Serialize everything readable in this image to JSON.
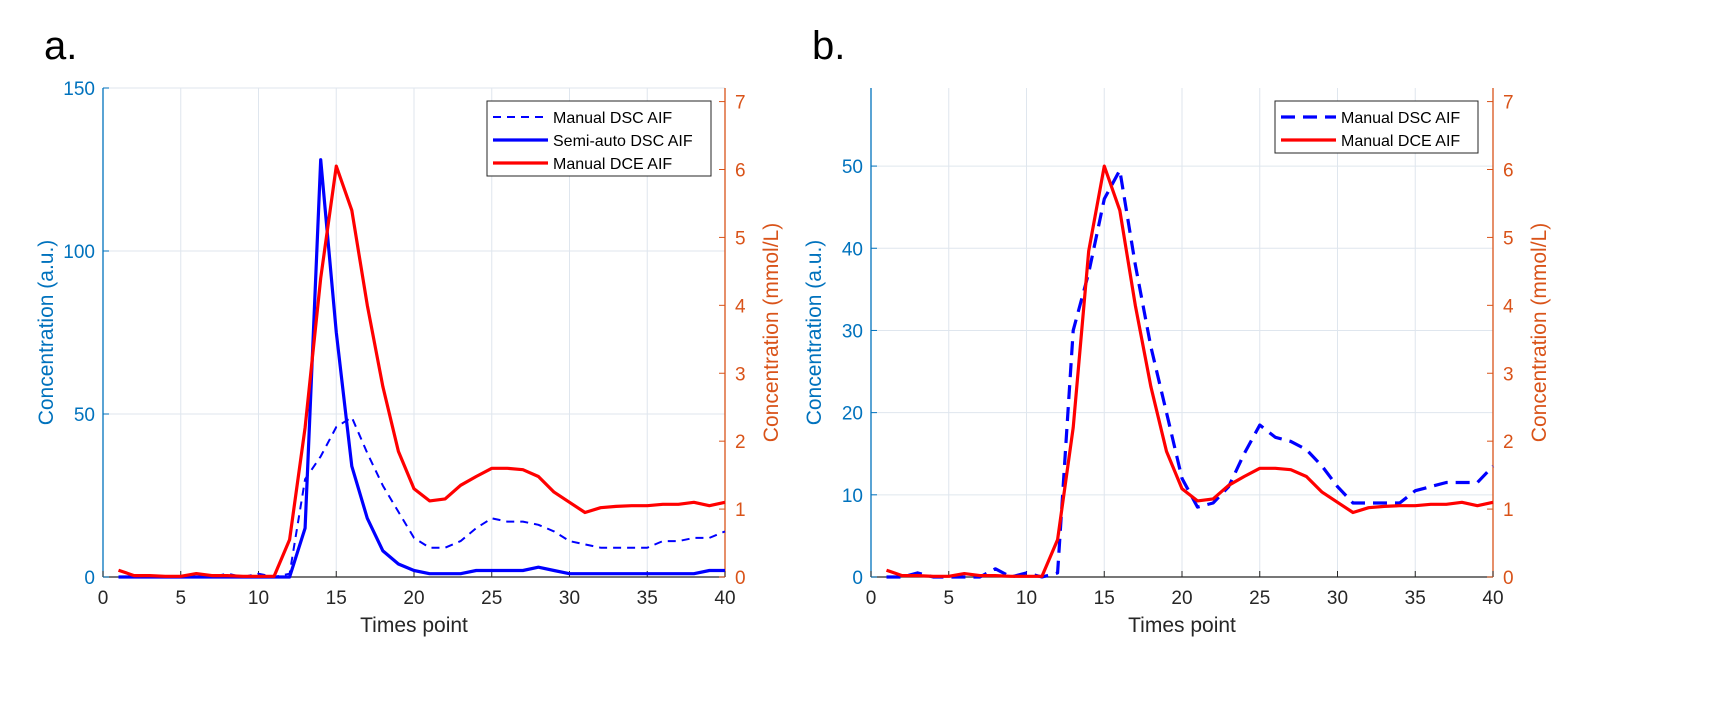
{
  "panels": [
    {
      "label": "a."
    },
    {
      "label": "b."
    }
  ],
  "colors": {
    "left_axis": "#0072BD",
    "right_axis": "#D95319",
    "manual_dsc": "#0000FF",
    "semi_auto_dsc": "#0000FF",
    "manual_dce": "#FF0000",
    "grid": "#DFE6EE"
  },
  "chart_data": [
    {
      "type": "line",
      "xlabel": "Times point",
      "ylabel_left": "Concentration (a.u.)",
      "ylabel_right": "Concentration (mmol/L)",
      "xlim": [
        0,
        40
      ],
      "ylim_left": [
        0,
        150
      ],
      "ylim_right": [
        0,
        7.2
      ],
      "xticks": [
        0,
        5,
        10,
        15,
        20,
        25,
        30,
        35,
        40
      ],
      "yticks_left": [
        0,
        50,
        100,
        150
      ],
      "yticks_right": [
        0,
        1,
        2,
        3,
        4,
        5,
        6,
        7
      ],
      "grid": true,
      "legend_position": "top-right",
      "series": [
        {
          "name": "Manual DSC AIF",
          "axis": "left",
          "style": "dashed",
          "x": [
            1,
            2,
            3,
            4,
            5,
            6,
            7,
            8,
            9,
            10,
            11,
            12,
            13,
            14,
            15,
            16,
            17,
            18,
            19,
            20,
            21,
            22,
            23,
            24,
            25,
            26,
            27,
            28,
            29,
            30,
            31,
            32,
            33,
            34,
            35,
            36,
            37,
            38,
            39,
            40
          ],
          "y": [
            0,
            0,
            0,
            0,
            0,
            0,
            0,
            1,
            0,
            1,
            0,
            1,
            30,
            37,
            46,
            49,
            38,
            28,
            20,
            12,
            9,
            9,
            11,
            15,
            18,
            17,
            17,
            16,
            14,
            11,
            10,
            9,
            9,
            9,
            9,
            11,
            11,
            12,
            12,
            14
          ]
        },
        {
          "name": "Semi-auto DSC AIF",
          "axis": "left",
          "style": "solid",
          "x": [
            1,
            2,
            3,
            4,
            5,
            6,
            7,
            8,
            9,
            10,
            11,
            12,
            13,
            14,
            15,
            16,
            17,
            18,
            19,
            20,
            21,
            22,
            23,
            24,
            25,
            26,
            27,
            28,
            29,
            30,
            31,
            32,
            33,
            34,
            35,
            36,
            37,
            38,
            39,
            40
          ],
          "y": [
            0,
            0,
            0,
            0,
            0,
            0,
            0,
            0,
            0,
            0,
            0,
            0,
            15,
            128,
            75,
            34,
            18,
            8,
            4,
            2,
            1,
            1,
            1,
            2,
            2,
            2,
            2,
            3,
            2,
            1,
            1,
            1,
            1,
            1,
            1,
            1,
            1,
            1,
            2,
            2
          ]
        },
        {
          "name": "Manual DCE AIF",
          "axis": "right",
          "style": "solid",
          "x": [
            1,
            2,
            3,
            4,
            5,
            6,
            7,
            8,
            9,
            10,
            11,
            12,
            13,
            14,
            15,
            16,
            17,
            18,
            19,
            20,
            21,
            22,
            23,
            24,
            25,
            26,
            27,
            28,
            29,
            30,
            31,
            32,
            33,
            34,
            35,
            36,
            37,
            38,
            39,
            40
          ],
          "y": [
            0.1,
            0.02,
            0.02,
            0.01,
            0.01,
            0.05,
            0.02,
            0.02,
            0.01,
            0.01,
            0.01,
            0.55,
            2.2,
            4.4,
            6.05,
            5.4,
            4.0,
            2.8,
            1.85,
            1.3,
            1.12,
            1.15,
            1.35,
            1.48,
            1.6,
            1.6,
            1.58,
            1.48,
            1.25,
            1.1,
            0.95,
            1.02,
            1.04,
            1.05,
            1.05,
            1.07,
            1.07,
            1.1,
            1.05,
            1.1
          ]
        }
      ]
    },
    {
      "type": "line",
      "xlabel": "Times point",
      "ylabel_left": "Concentration (a.u.)",
      "ylabel_right": "Concentration (mmol/L)",
      "xlim": [
        0,
        40
      ],
      "ylim_left": [
        0,
        59.5
      ],
      "ylim_right": [
        0,
        7.2
      ],
      "xticks": [
        0,
        5,
        10,
        15,
        20,
        25,
        30,
        35,
        40
      ],
      "yticks_left": [
        0,
        10,
        20,
        30,
        40,
        50
      ],
      "yticks_right": [
        0,
        1,
        2,
        3,
        4,
        5,
        6,
        7
      ],
      "grid": true,
      "legend_position": "top-right",
      "series": [
        {
          "name": "Manual DSC AIF",
          "axis": "left",
          "style": "dashed",
          "x": [
            1,
            2,
            3,
            4,
            5,
            6,
            7,
            8,
            9,
            10,
            11,
            12,
            13,
            14,
            15,
            16,
            17,
            18,
            19,
            20,
            21,
            22,
            23,
            24,
            25,
            26,
            27,
            28,
            29,
            30,
            31,
            32,
            33,
            34,
            35,
            36,
            37,
            38,
            39,
            40
          ],
          "y": [
            0,
            0,
            0.5,
            0,
            0,
            0,
            0,
            1,
            0,
            0.5,
            0,
            0.5,
            30,
            37,
            46,
            49.5,
            38,
            28,
            20,
            12,
            8.5,
            9,
            11,
            15,
            18.5,
            17,
            16.5,
            15.5,
            13.5,
            11,
            9,
            9,
            9,
            9,
            10.5,
            11,
            11.5,
            11.5,
            11.5,
            13.5
          ]
        },
        {
          "name": "Manual DCE AIF",
          "axis": "right",
          "style": "solid",
          "x": [
            1,
            2,
            3,
            4,
            5,
            6,
            7,
            8,
            9,
            10,
            11,
            12,
            13,
            14,
            15,
            16,
            17,
            18,
            19,
            20,
            21,
            22,
            23,
            24,
            25,
            26,
            27,
            28,
            29,
            30,
            31,
            32,
            33,
            34,
            35,
            36,
            37,
            38,
            39,
            40
          ],
          "y": [
            0.1,
            0.02,
            0.02,
            0.01,
            0.01,
            0.05,
            0.02,
            0.02,
            0.01,
            0.01,
            0.01,
            0.55,
            2.2,
            4.8,
            6.05,
            5.4,
            4.0,
            2.8,
            1.85,
            1.3,
            1.12,
            1.15,
            1.35,
            1.48,
            1.6,
            1.6,
            1.58,
            1.48,
            1.25,
            1.1,
            0.95,
            1.02,
            1.04,
            1.05,
            1.05,
            1.07,
            1.07,
            1.1,
            1.05,
            1.1
          ]
        }
      ]
    }
  ]
}
